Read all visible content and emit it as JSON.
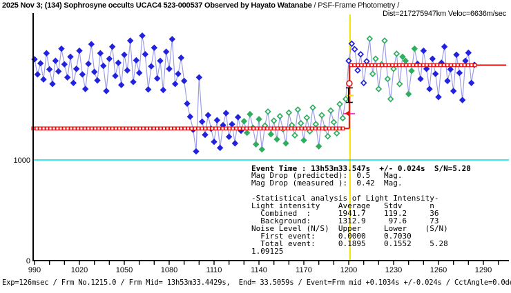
{
  "title": {
    "main": "2025 Nov 3; (134) Sophrosyne occults UCAC4 523-000537 Observed by Hayato Watanabe",
    "suffix": " / PSF-Frame Photometry /",
    "info_line": "Dist=217275947km Veloc=6636m/sec"
  },
  "stats": {
    "event_line": "Event Time : 13h53m33.547s  +/- 0.024s  S/N=5.28",
    "lines": [
      "Mag Drop (predicted):  0.5   Mag.",
      "Mag Drop (measured ):  0.42  Mag.",
      "",
      "-Statistical analysis of Light Intensity-",
      "Light intensity    Average   Stdv      n",
      "  Combined  :      1941.7    119.2     36",
      "  Background:      1312.9     97.6     73",
      "Noise Level (N/S)  Upper     Lower    (S/N)",
      "  First event:     0.0000    0.7030",
      "  Total event:     0.1895    0.1552    5.28",
      "1.09125"
    ]
  },
  "status_bar": {
    "text": "Exp=126msec / Frm No.1215.0 / Frm Mid= 13h53m33.4429s,  End= 33.5059s / Event=Frm mid +0.1034s +/-0.024s / CctAngle=0.0deg"
  },
  "colors": {
    "blue": "#2222dd",
    "green": "#2fae60",
    "red": "#e01010",
    "cyan": "#00dde6",
    "yellow": "#f2e400",
    "magenta": "#ff33cc",
    "connector": "#9d9dea",
    "black": "#000000",
    "white": "#ffffff"
  },
  "chart_data": {
    "type": "line",
    "description": "Occultation light-curve: intensity vs frame number, square-wave fit of reappearance event",
    "x_axis": {
      "major_ticks": [
        990,
        1020,
        1050,
        1080,
        1110,
        1140,
        1170,
        1200,
        1230,
        1260,
        1290
      ],
      "minor_tick_step": 10,
      "range": [
        990,
        1307
      ]
    },
    "y_axis": {
      "ticks": [
        {
          "value": 0,
          "label": "0"
        },
        {
          "value": 1000,
          "label": "1000"
        }
      ],
      "range": [
        0,
        2450
      ],
      "gridline_at": 1000
    },
    "levels": {
      "combined_average": 1941.7,
      "combined_stdv": 119.2,
      "background_average": 1312.9,
      "background_stdv": 97.6
    },
    "model": {
      "occulted_level": 1312.9,
      "full_level": 1941.7,
      "step_frame": 1200.4,
      "squares_lower_range": [
        989.1,
        1198.3
      ],
      "squares_upper_range": [
        1201.5,
        1286.5
      ],
      "solid_lower_range": [
        989.0,
        1200.4
      ],
      "solid_upper_range": [
        1200.4,
        1305.3
      ],
      "square_step_frames": 2.3
    },
    "event": {
      "event_line_frame": 1200.9,
      "circle_marker": {
        "frame": 1200.4,
        "value": 1760
      },
      "triangle_marker": {
        "frame_tip": 1197.5,
        "frame_base": 1200.7,
        "value": 1462
      },
      "magenta_bar": {
        "frame_from": 1196.3,
        "frame_to": 1204.2,
        "value": 1460
      },
      "error_bar": {
        "frame": 1200.4,
        "value_top": 1716,
        "value_bottom": 1572,
        "cap_half_width_frames": 2.3
      },
      "yellow_tick": {
        "value": 1640,
        "half_width_frames": 2.3
      }
    },
    "point_styles": {
      "bf": "blue-filled-diamond",
      "bo": "blue-open-diamond",
      "gf": "green-filled-diamond",
      "go": "green-open-diamond"
    },
    "points": [
      [
        990,
        2000,
        "bf"
      ],
      [
        992,
        1850,
        "bf"
      ],
      [
        994,
        1960,
        "bf"
      ],
      [
        996,
        1800,
        "bf"
      ],
      [
        998,
        2060,
        "bf"
      ],
      [
        1000,
        1900,
        "bf"
      ],
      [
        1002,
        1755,
        "bf"
      ],
      [
        1004,
        1985,
        "bf"
      ],
      [
        1006,
        1880,
        "bf"
      ],
      [
        1008,
        2105,
        "bf"
      ],
      [
        1010,
        1950,
        "bf"
      ],
      [
        1012,
        1820,
        "bf"
      ],
      [
        1014,
        2025,
        "bf"
      ],
      [
        1016,
        1765,
        "bf"
      ],
      [
        1018,
        1905,
        "bf"
      ],
      [
        1020,
        2085,
        "bf"
      ],
      [
        1022,
        1850,
        "bf"
      ],
      [
        1024,
        1705,
        "bf"
      ],
      [
        1026,
        1955,
        "bf"
      ],
      [
        1028,
        2150,
        "bf"
      ],
      [
        1030,
        1875,
        "bf"
      ],
      [
        1032,
        1790,
        "bf"
      ],
      [
        1034,
        2060,
        "bf"
      ],
      [
        1036,
        1935,
        "bf"
      ],
      [
        1038,
        1685,
        "bf"
      ],
      [
        1040,
        2005,
        "bf"
      ],
      [
        1042,
        2125,
        "bf"
      ],
      [
        1044,
        1835,
        "bf"
      ],
      [
        1046,
        1965,
        "bf"
      ],
      [
        1048,
        1745,
        "bf"
      ],
      [
        1050,
        2045,
        "bf"
      ],
      [
        1052,
        1890,
        "bf"
      ],
      [
        1054,
        2185,
        "bf"
      ],
      [
        1056,
        1775,
        "bf"
      ],
      [
        1058,
        1990,
        "bf"
      ],
      [
        1060,
        1865,
        "bf"
      ],
      [
        1062,
        2235,
        "bf"
      ],
      [
        1064,
        2050,
        "bf"
      ],
      [
        1066,
        1700,
        "bf"
      ],
      [
        1068,
        1930,
        "bf"
      ],
      [
        1070,
        2115,
        "bf"
      ],
      [
        1072,
        1810,
        "bf"
      ],
      [
        1074,
        1985,
        "bf"
      ],
      [
        1076,
        1695,
        "bf"
      ],
      [
        1078,
        2075,
        "bf"
      ],
      [
        1080,
        1905,
        "bf"
      ],
      [
        1082,
        2200,
        "bf"
      ],
      [
        1084,
        1755,
        "bf"
      ],
      [
        1086,
        1855,
        "bf"
      ],
      [
        1088,
        2015,
        "bf"
      ],
      [
        1090,
        1785,
        "bf"
      ],
      [
        1092,
        1560,
        "bf"
      ],
      [
        1094,
        1430,
        "bf"
      ],
      [
        1096,
        1300,
        "bf"
      ],
      [
        1098,
        1085,
        "bf"
      ],
      [
        1100,
        1820,
        "bf"
      ],
      [
        1102,
        1380,
        "bf"
      ],
      [
        1104,
        1250,
        "bf"
      ],
      [
        1106,
        1445,
        "bf"
      ],
      [
        1108,
        1310,
        "bf"
      ],
      [
        1110,
        1180,
        "bf"
      ],
      [
        1112,
        1395,
        "bf"
      ],
      [
        1114,
        1120,
        "bf"
      ],
      [
        1116,
        1345,
        "bf"
      ],
      [
        1118,
        1465,
        "bf"
      ],
      [
        1120,
        1230,
        "bf"
      ],
      [
        1122,
        1355,
        "bf"
      ],
      [
        1124,
        1165,
        "bf"
      ],
      [
        1126,
        1425,
        "bf"
      ],
      [
        1128,
        1290,
        "bf"
      ],
      [
        1130,
        1385,
        "gf"
      ],
      [
        1132,
        1270,
        "gf"
      ],
      [
        1134,
        1455,
        "gf"
      ],
      [
        1136,
        1320,
        "gf"
      ],
      [
        1138,
        1155,
        "gf"
      ],
      [
        1140,
        1405,
        "gf"
      ],
      [
        1142,
        1105,
        "gf"
      ],
      [
        1144,
        1340,
        "go"
      ],
      [
        1146,
        1480,
        "go"
      ],
      [
        1148,
        1255,
        "gf"
      ],
      [
        1150,
        1390,
        "go"
      ],
      [
        1152,
        1205,
        "gf"
      ],
      [
        1154,
        1435,
        "go"
      ],
      [
        1156,
        1305,
        "go"
      ],
      [
        1158,
        1165,
        "gf"
      ],
      [
        1160,
        1470,
        "go"
      ],
      [
        1162,
        1345,
        "go"
      ],
      [
        1164,
        1245,
        "go"
      ],
      [
        1166,
        1500,
        "go"
      ],
      [
        1168,
        1365,
        "go"
      ],
      [
        1170,
        1195,
        "gf"
      ],
      [
        1172,
        1420,
        "go"
      ],
      [
        1174,
        1285,
        "go"
      ],
      [
        1176,
        1520,
        "go"
      ],
      [
        1178,
        1355,
        "go"
      ],
      [
        1180,
        1135,
        "gf"
      ],
      [
        1182,
        1445,
        "go"
      ],
      [
        1184,
        1315,
        "go"
      ],
      [
        1186,
        1235,
        "go"
      ],
      [
        1188,
        1490,
        "go"
      ],
      [
        1190,
        1375,
        "go"
      ],
      [
        1192,
        1265,
        "go"
      ],
      [
        1194,
        1555,
        "go"
      ],
      [
        1196,
        1415,
        "go"
      ],
      [
        1198,
        1605,
        "go"
      ],
      [
        1200,
        1985,
        "bo"
      ],
      [
        1202,
        2155,
        "bo"
      ],
      [
        1204,
        2100,
        "bo"
      ],
      [
        1206,
        1890,
        "bo"
      ],
      [
        1208,
        2050,
        "bo"
      ],
      [
        1210,
        1765,
        "bo"
      ],
      [
        1212,
        1980,
        "bo"
      ],
      [
        1214,
        2205,
        "go"
      ],
      [
        1216,
        1855,
        "go"
      ],
      [
        1218,
        2005,
        "go"
      ],
      [
        1220,
        1705,
        "go"
      ],
      [
        1222,
        1950,
        "go"
      ],
      [
        1224,
        2185,
        "go"
      ],
      [
        1226,
        1805,
        "go"
      ],
      [
        1228,
        1605,
        "go"
      ],
      [
        1230,
        1905,
        "go"
      ],
      [
        1232,
        2055,
        "go"
      ],
      [
        1234,
        1755,
        "go"
      ],
      [
        1236,
        2025,
        "gf"
      ],
      [
        1238,
        1985,
        "gf"
      ],
      [
        1240,
        1655,
        "gf"
      ],
      [
        1242,
        1885,
        "gf"
      ],
      [
        1244,
        2105,
        "gf"
      ],
      [
        1246,
        1955,
        "bf"
      ],
      [
        1248,
        1805,
        "bf"
      ],
      [
        1250,
        2085,
        "bf"
      ],
      [
        1252,
        1905,
        "bf"
      ],
      [
        1254,
        1705,
        "bf"
      ],
      [
        1256,
        2005,
        "bf"
      ],
      [
        1258,
        1855,
        "bf"
      ],
      [
        1260,
        1625,
        "bf"
      ],
      [
        1262,
        1965,
        "bf"
      ],
      [
        1264,
        2125,
        "bf"
      ],
      [
        1266,
        1785,
        "bf"
      ],
      [
        1268,
        1900,
        "bf"
      ],
      [
        1270,
        1685,
        "bf"
      ],
      [
        1272,
        2045,
        "bf"
      ],
      [
        1274,
        1865,
        "bf"
      ],
      [
        1276,
        1595,
        "bf"
      ],
      [
        1278,
        1985,
        "bf"
      ],
      [
        1280,
        2065,
        "bf"
      ],
      [
        1282,
        1765,
        "bf"
      ],
      [
        1284,
        1945,
        "bf"
      ]
    ]
  }
}
